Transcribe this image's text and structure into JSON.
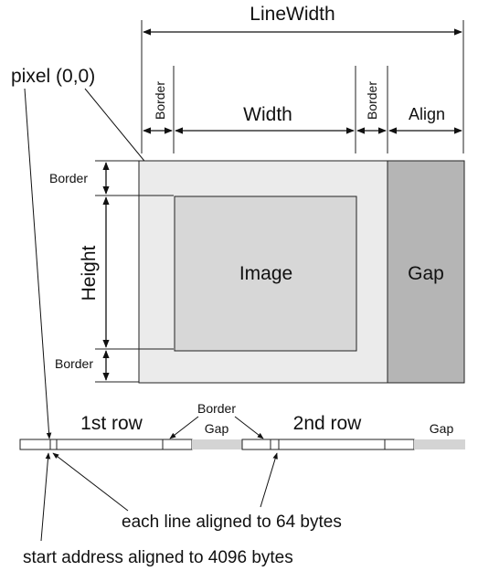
{
  "labels": {
    "line_width": "LineWidth",
    "pixel_origin": "pixel (0,0)",
    "border_top_left": "Border",
    "width": "Width",
    "border_top_right": "Border",
    "align": "Align",
    "border_left_top": "Border",
    "height": "Height",
    "border_left_bottom": "Border",
    "image": "Image",
    "gap_block": "Gap",
    "row_1": "1st row",
    "row_border": "Border",
    "row_gap_1": "Gap",
    "row_2": "2nd row",
    "row_gap_2": "Gap",
    "line_align_note": "each line aligned to 64 bytes",
    "start_align_note": "start address aligned to 4096 bytes"
  },
  "colors": {
    "outer_frame": "#ebebeb",
    "image": "#d7d7d7",
    "gap": "#b5b5b5",
    "row_gap": "#d4d4d4",
    "stroke": "#222222"
  }
}
